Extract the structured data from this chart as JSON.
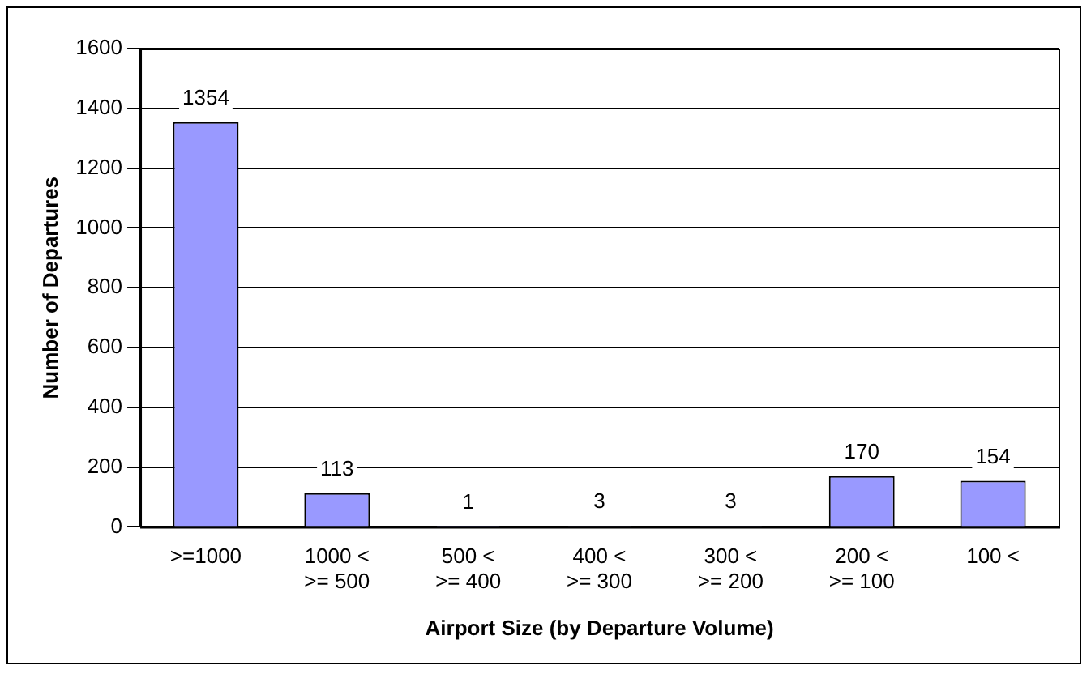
{
  "chart_data": {
    "type": "bar",
    "xlabel": "Airport Size (by Departure Volume)",
    "ylabel": "Number of Departures",
    "categories": [
      ">=1000",
      "1000 <\n>= 500",
      "500 <\n>= 400",
      "400 <\n>= 300",
      "300 <\n>= 200",
      "200 <\n>= 100",
      "100 <"
    ],
    "values": [
      1354,
      113,
      1,
      3,
      3,
      170,
      154
    ],
    "color": "#9999ff",
    "ylim": [
      0,
      1600
    ],
    "yticks": [
      0,
      200,
      400,
      600,
      800,
      1000,
      1200,
      1400,
      1600
    ],
    "grid": "y",
    "legend": false,
    "data_labels": true
  }
}
